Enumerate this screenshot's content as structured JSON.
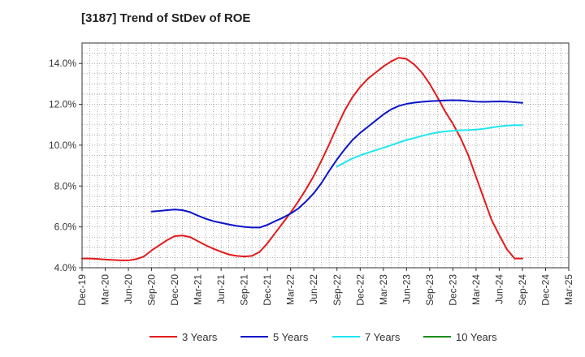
{
  "chart_data": {
    "type": "line",
    "title": "[3187]  Trend of StDev of ROE",
    "xlabel": "",
    "ylabel": "",
    "ylim": [
      4.0,
      15.0
    ],
    "y_ticks": [
      4.0,
      6.0,
      8.0,
      10.0,
      12.0,
      14.0
    ],
    "y_tick_labels": [
      "4.0%",
      "6.0%",
      "8.0%",
      "10.0%",
      "12.0%",
      "14.0%"
    ],
    "x_tick_labels": [
      "Dec-19",
      "Mar-20",
      "Jun-20",
      "Sep-20",
      "Dec-20",
      "Mar-21",
      "Jun-21",
      "Sep-21",
      "Dec-21",
      "Mar-22",
      "Jun-22",
      "Sep-22",
      "Dec-22",
      "Mar-23",
      "Jun-23",
      "Sep-23",
      "Dec-23",
      "Mar-24",
      "Jun-24",
      "Sep-24",
      "Dec-24",
      "Mar-25"
    ],
    "x_range_months": [
      0,
      63
    ],
    "grid": true,
    "legend_position": "bottom",
    "series": [
      {
        "name": "3 Years",
        "color": "#e31a1c",
        "points": [
          [
            0,
            4.45
          ],
          [
            1,
            4.45
          ],
          [
            2,
            4.43
          ],
          [
            3,
            4.4
          ],
          [
            4,
            4.38
          ],
          [
            5,
            4.36
          ],
          [
            6,
            4.36
          ],
          [
            7,
            4.42
          ],
          [
            8,
            4.55
          ],
          [
            9,
            4.85
          ],
          [
            10,
            5.1
          ],
          [
            11,
            5.35
          ],
          [
            12,
            5.55
          ],
          [
            13,
            5.58
          ],
          [
            14,
            5.5
          ],
          [
            15,
            5.3
          ],
          [
            16,
            5.1
          ],
          [
            17,
            4.93
          ],
          [
            18,
            4.78
          ],
          [
            19,
            4.65
          ],
          [
            20,
            4.58
          ],
          [
            21,
            4.55
          ],
          [
            22,
            4.58
          ],
          [
            23,
            4.78
          ],
          [
            24,
            5.2
          ],
          [
            25,
            5.7
          ],
          [
            26,
            6.2
          ],
          [
            27,
            6.7
          ],
          [
            28,
            7.25
          ],
          [
            29,
            7.85
          ],
          [
            30,
            8.5
          ],
          [
            31,
            9.25
          ],
          [
            32,
            10.05
          ],
          [
            33,
            10.9
          ],
          [
            34,
            11.7
          ],
          [
            35,
            12.35
          ],
          [
            36,
            12.85
          ],
          [
            37,
            13.25
          ],
          [
            38,
            13.55
          ],
          [
            39,
            13.85
          ],
          [
            40,
            14.1
          ],
          [
            41,
            14.28
          ],
          [
            42,
            14.22
          ],
          [
            43,
            13.95
          ],
          [
            44,
            13.55
          ],
          [
            45,
            13.0
          ],
          [
            46,
            12.35
          ],
          [
            47,
            11.65
          ],
          [
            48,
            11.05
          ],
          [
            49,
            10.35
          ],
          [
            50,
            9.5
          ],
          [
            51,
            8.45
          ],
          [
            52,
            7.4
          ],
          [
            53,
            6.35
          ],
          [
            54,
            5.6
          ],
          [
            55,
            4.9
          ],
          [
            56,
            4.45
          ],
          [
            57,
            4.45
          ]
        ]
      },
      {
        "name": "5 Years",
        "color": "#0a14c8",
        "points": [
          [
            9,
            6.75
          ],
          [
            10,
            6.78
          ],
          [
            11,
            6.82
          ],
          [
            12,
            6.85
          ],
          [
            13,
            6.82
          ],
          [
            14,
            6.72
          ],
          [
            15,
            6.55
          ],
          [
            16,
            6.4
          ],
          [
            17,
            6.28
          ],
          [
            18,
            6.2
          ],
          [
            19,
            6.12
          ],
          [
            20,
            6.05
          ],
          [
            21,
            6.0
          ],
          [
            22,
            5.97
          ],
          [
            23,
            5.97
          ],
          [
            24,
            6.1
          ],
          [
            25,
            6.28
          ],
          [
            26,
            6.45
          ],
          [
            27,
            6.65
          ],
          [
            28,
            6.9
          ],
          [
            29,
            7.25
          ],
          [
            30,
            7.65
          ],
          [
            31,
            8.15
          ],
          [
            32,
            8.75
          ],
          [
            33,
            9.3
          ],
          [
            34,
            9.8
          ],
          [
            35,
            10.25
          ],
          [
            36,
            10.6
          ],
          [
            37,
            10.9
          ],
          [
            38,
            11.2
          ],
          [
            39,
            11.5
          ],
          [
            40,
            11.75
          ],
          [
            41,
            11.92
          ],
          [
            42,
            12.02
          ],
          [
            43,
            12.08
          ],
          [
            44,
            12.12
          ],
          [
            45,
            12.15
          ],
          [
            46,
            12.17
          ],
          [
            47,
            12.19
          ],
          [
            48,
            12.2
          ],
          [
            49,
            12.19
          ],
          [
            50,
            12.16
          ],
          [
            51,
            12.13
          ],
          [
            52,
            12.12
          ],
          [
            53,
            12.13
          ],
          [
            54,
            12.14
          ],
          [
            55,
            12.13
          ],
          [
            56,
            12.1
          ],
          [
            57,
            12.07
          ]
        ]
      },
      {
        "name": "7 Years",
        "color": "#1ee6f0",
        "points": [
          [
            33,
            8.95
          ],
          [
            34,
            9.15
          ],
          [
            35,
            9.35
          ],
          [
            36,
            9.5
          ],
          [
            37,
            9.63
          ],
          [
            38,
            9.75
          ],
          [
            39,
            9.87
          ],
          [
            40,
            10.0
          ],
          [
            41,
            10.13
          ],
          [
            42,
            10.25
          ],
          [
            43,
            10.35
          ],
          [
            44,
            10.45
          ],
          [
            45,
            10.55
          ],
          [
            46,
            10.62
          ],
          [
            47,
            10.67
          ],
          [
            48,
            10.7
          ],
          [
            49,
            10.73
          ],
          [
            50,
            10.74
          ],
          [
            51,
            10.76
          ],
          [
            52,
            10.8
          ],
          [
            53,
            10.86
          ],
          [
            54,
            10.92
          ],
          [
            55,
            10.96
          ],
          [
            56,
            10.98
          ],
          [
            57,
            10.98
          ]
        ]
      },
      {
        "name": "10 Years",
        "color": "#1a8c1a",
        "points": []
      }
    ]
  }
}
